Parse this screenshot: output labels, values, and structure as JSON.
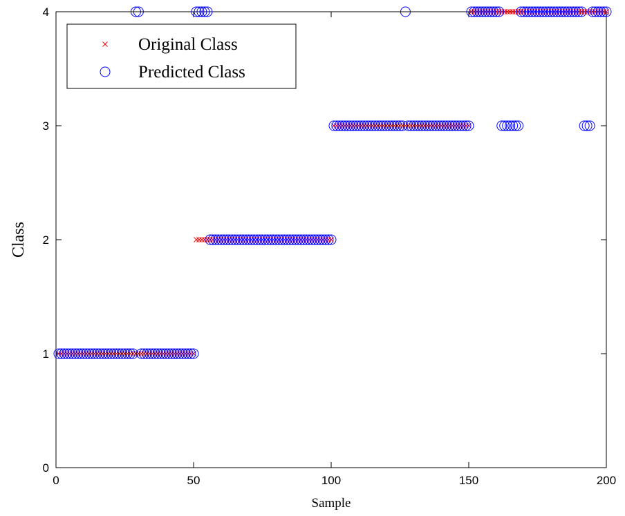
{
  "chart_data": {
    "type": "scatter",
    "x_label": "Sample",
    "y_label": "Class",
    "x": [
      1,
      2,
      3,
      4,
      5,
      6,
      7,
      8,
      9,
      10,
      11,
      12,
      13,
      14,
      15,
      16,
      17,
      18,
      19,
      20,
      21,
      22,
      23,
      24,
      25,
      26,
      27,
      28,
      29,
      30,
      31,
      32,
      33,
      34,
      35,
      36,
      37,
      38,
      39,
      40,
      41,
      42,
      43,
      44,
      45,
      46,
      47,
      48,
      49,
      50,
      51,
      52,
      53,
      54,
      55,
      56,
      57,
      58,
      59,
      60,
      61,
      62,
      63,
      64,
      65,
      66,
      67,
      68,
      69,
      70,
      71,
      72,
      73,
      74,
      75,
      76,
      77,
      78,
      79,
      80,
      81,
      82,
      83,
      84,
      85,
      86,
      87,
      88,
      89,
      90,
      91,
      92,
      93,
      94,
      95,
      96,
      97,
      98,
      99,
      100,
      101,
      102,
      103,
      104,
      105,
      106,
      107,
      108,
      109,
      110,
      111,
      112,
      113,
      114,
      115,
      116,
      117,
      118,
      119,
      120,
      121,
      122,
      123,
      124,
      125,
      126,
      127,
      128,
      129,
      130,
      131,
      132,
      133,
      134,
      135,
      136,
      137,
      138,
      139,
      140,
      141,
      142,
      143,
      144,
      145,
      146,
      147,
      148,
      149,
      150,
      151,
      152,
      153,
      154,
      155,
      156,
      157,
      158,
      159,
      160,
      161,
      162,
      163,
      164,
      165,
      166,
      167,
      168,
      169,
      170,
      171,
      172,
      173,
      174,
      175,
      176,
      177,
      178,
      179,
      180,
      181,
      182,
      183,
      184,
      185,
      186,
      187,
      188,
      189,
      190,
      191,
      192,
      193,
      194,
      195,
      196,
      197,
      198,
      199,
      200
    ],
    "series": [
      {
        "name": "Original Class",
        "color": "#ff0000",
        "marker": "x",
        "values": [
          1,
          1,
          1,
          1,
          1,
          1,
          1,
          1,
          1,
          1,
          1,
          1,
          1,
          1,
          1,
          1,
          1,
          1,
          1,
          1,
          1,
          1,
          1,
          1,
          1,
          1,
          1,
          1,
          1,
          1,
          1,
          1,
          1,
          1,
          1,
          1,
          1,
          1,
          1,
          1,
          1,
          1,
          1,
          1,
          1,
          1,
          1,
          1,
          1,
          1,
          2,
          2,
          2,
          2,
          2,
          2,
          2,
          2,
          2,
          2,
          2,
          2,
          2,
          2,
          2,
          2,
          2,
          2,
          2,
          2,
          2,
          2,
          2,
          2,
          2,
          2,
          2,
          2,
          2,
          2,
          2,
          2,
          2,
          2,
          2,
          2,
          2,
          2,
          2,
          2,
          2,
          2,
          2,
          2,
          2,
          2,
          2,
          2,
          2,
          2,
          3,
          3,
          3,
          3,
          3,
          3,
          3,
          3,
          3,
          3,
          3,
          3,
          3,
          3,
          3,
          3,
          3,
          3,
          3,
          3,
          3,
          3,
          3,
          3,
          3,
          3,
          3,
          3,
          3,
          3,
          3,
          3,
          3,
          3,
          3,
          3,
          3,
          3,
          3,
          3,
          3,
          3,
          3,
          3,
          3,
          3,
          3,
          3,
          3,
          3,
          4,
          4,
          4,
          4,
          4,
          4,
          4,
          4,
          4,
          4,
          4,
          4,
          4,
          4,
          4,
          4,
          4,
          4,
          4,
          4,
          4,
          4,
          4,
          4,
          4,
          4,
          4,
          4,
          4,
          4,
          4,
          4,
          4,
          4,
          4,
          4,
          4,
          4,
          4,
          4,
          4,
          4,
          4,
          4,
          4,
          4,
          4,
          4,
          4,
          4
        ]
      },
      {
        "name": "Predicted Class",
        "color": "#0000ff",
        "marker": "o",
        "values": [
          1,
          1,
          1,
          1,
          1,
          1,
          1,
          1,
          1,
          1,
          1,
          1,
          1,
          1,
          1,
          1,
          1,
          1,
          1,
          1,
          1,
          1,
          1,
          1,
          1,
          1,
          1,
          1,
          4,
          4,
          1,
          1,
          1,
          1,
          1,
          1,
          1,
          1,
          1,
          1,
          1,
          1,
          1,
          1,
          1,
          1,
          1,
          1,
          1,
          1,
          4,
          4,
          4,
          4,
          4,
          2,
          2,
          2,
          2,
          2,
          2,
          2,
          2,
          2,
          2,
          2,
          2,
          2,
          2,
          2,
          2,
          2,
          2,
          2,
          2,
          2,
          2,
          2,
          2,
          2,
          2,
          2,
          2,
          2,
          2,
          2,
          2,
          2,
          2,
          2,
          2,
          2,
          2,
          2,
          2,
          2,
          2,
          2,
          2,
          2,
          3,
          3,
          3,
          3,
          3,
          3,
          3,
          3,
          3,
          3,
          3,
          3,
          3,
          3,
          3,
          3,
          3,
          3,
          3,
          3,
          3,
          3,
          3,
          3,
          3,
          3,
          4,
          3,
          3,
          3,
          3,
          3,
          3,
          3,
          3,
          3,
          3,
          3,
          3,
          3,
          3,
          3,
          3,
          3,
          3,
          3,
          3,
          3,
          3,
          3,
          4,
          4,
          4,
          4,
          4,
          4,
          4,
          4,
          4,
          4,
          4,
          3,
          3,
          3,
          3,
          3,
          3,
          3,
          4,
          4,
          4,
          4,
          4,
          4,
          4,
          4,
          4,
          4,
          4,
          4,
          4,
          4,
          4,
          4,
          4,
          4,
          4,
          4,
          4,
          4,
          4,
          3,
          3,
          3,
          4,
          4,
          4,
          4,
          4,
          4
        ]
      }
    ],
    "xlim": [
      0,
      200
    ],
    "xticks": [
      0,
      50,
      100,
      150,
      200
    ],
    "ylim": [
      0,
      4
    ],
    "yticks": [
      0,
      1,
      2,
      3,
      4
    ],
    "legend": "upper left"
  }
}
